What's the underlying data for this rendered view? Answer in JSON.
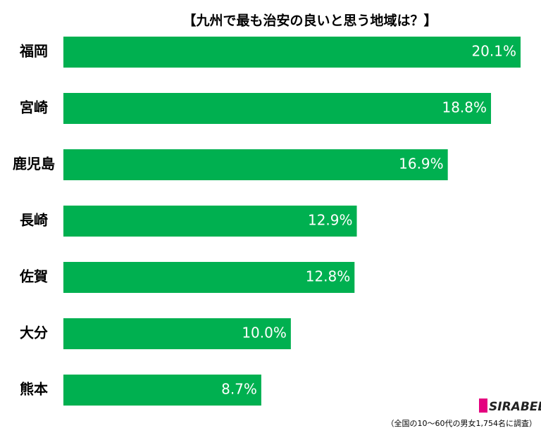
{
  "chart_data": {
    "type": "bar",
    "orientation": "horizontal",
    "title": "【九州で最も治安の良いと思う地域は？】",
    "categories": [
      "福岡",
      "宮崎",
      "鹿児島",
      "長崎",
      "佐賀",
      "大分",
      "熊本"
    ],
    "values": [
      20.1,
      18.8,
      16.9,
      12.9,
      12.8,
      10.0,
      8.7
    ],
    "value_labels": [
      "20.1%",
      "18.8%",
      "16.9%",
      "12.9%",
      "12.8%",
      "10.0%",
      "8.7%"
    ],
    "color": "#00b050",
    "note": "（全国の10～60代の男女1,754名に調査）",
    "logo": "SIRABEE"
  }
}
